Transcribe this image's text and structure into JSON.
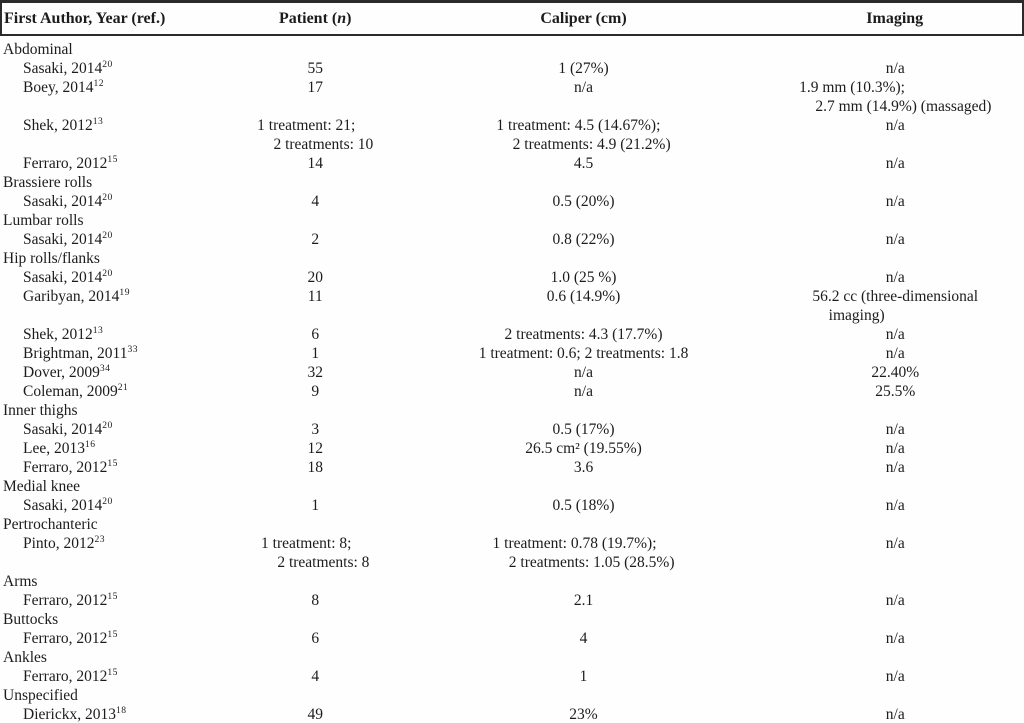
{
  "page": {
    "background_color": "#fefefe",
    "text_color": "#1c1c1c",
    "rule_color": "#2b2b2b"
  },
  "table": {
    "columns": [
      {
        "label": "First Author, Year (ref.)"
      },
      {
        "pre": "Patient (",
        "italic": "n",
        "post": ")"
      },
      {
        "label": "Caliper (cm)"
      },
      {
        "label": "Imaging"
      }
    ],
    "sections": [
      {
        "title": "Abdominal",
        "rows": [
          {
            "author": "Sasaki, 2014",
            "ref": "20",
            "patient": [
              "55"
            ],
            "caliper": [
              "1 (27%)"
            ],
            "imaging": [
              "n/a"
            ]
          },
          {
            "author": "Boey, 2014",
            "ref": "12",
            "patient": [
              "17"
            ],
            "caliper": [
              "n/a"
            ],
            "imaging": [
              "1.9 mm (10.3%);",
              "2.7 mm (14.9%) (massaged)"
            ]
          },
          {
            "author": "Shek, 2012",
            "ref": "13",
            "patient": [
              "1 treatment: 21;",
              "2 treatments: 10"
            ],
            "caliper": [
              "1 treatment: 4.5 (14.67%);",
              "2 treatments: 4.9 (21.2%)"
            ],
            "imaging": [
              "n/a"
            ]
          },
          {
            "author": "Ferraro, 2012",
            "ref": "15",
            "patient": [
              "14"
            ],
            "caliper": [
              "4.5"
            ],
            "imaging": [
              "n/a"
            ]
          }
        ]
      },
      {
        "title": "Brassiere rolls",
        "rows": [
          {
            "author": "Sasaki, 2014",
            "ref": "20",
            "patient": [
              "4"
            ],
            "caliper": [
              "0.5 (20%)"
            ],
            "imaging": [
              "n/a"
            ]
          }
        ]
      },
      {
        "title": "Lumbar rolls",
        "rows": [
          {
            "author": "Sasaki, 2014",
            "ref": "20",
            "patient": [
              "2"
            ],
            "caliper": [
              "0.8 (22%)"
            ],
            "imaging": [
              "n/a"
            ]
          }
        ]
      },
      {
        "title": "Hip rolls/flanks",
        "rows": [
          {
            "author": "Sasaki, 2014",
            "ref": "20",
            "patient": [
              "20"
            ],
            "caliper": [
              "1.0 (25 %)"
            ],
            "imaging": [
              "n/a"
            ]
          },
          {
            "author": "Garibyan, 2014",
            "ref": "19",
            "patient": [
              "11"
            ],
            "caliper": [
              "0.6 (14.9%)"
            ],
            "imaging": [
              "56.2 cc (three-dimensional",
              "imaging)"
            ]
          },
          {
            "author": "Shek, 2012",
            "ref": "13",
            "patient": [
              "6"
            ],
            "caliper": [
              "2 treatments: 4.3 (17.7%)"
            ],
            "imaging": [
              "n/a"
            ]
          },
          {
            "author": "Brightman, 2011",
            "ref": "33",
            "patient": [
              "1"
            ],
            "caliper": [
              "1 treatment: 0.6; 2 treatments: 1.8"
            ],
            "imaging": [
              "n/a"
            ]
          },
          {
            "author": "Dover, 2009",
            "ref": "34",
            "patient": [
              "32"
            ],
            "caliper": [
              "n/a"
            ],
            "imaging": [
              "22.40%"
            ]
          },
          {
            "author": "Coleman, 2009",
            "ref": "21",
            "patient": [
              "9"
            ],
            "caliper": [
              "n/a"
            ],
            "imaging": [
              "25.5%"
            ]
          }
        ]
      },
      {
        "title": "Inner thighs",
        "rows": [
          {
            "author": "Sasaki, 2014",
            "ref": "20",
            "patient": [
              "3"
            ],
            "caliper": [
              "0.5 (17%)"
            ],
            "imaging": [
              "n/a"
            ]
          },
          {
            "author": "Lee, 2013",
            "ref": "16",
            "patient": [
              "12"
            ],
            "caliper": [
              "26.5 cm² (19.55%)"
            ],
            "imaging": [
              "n/a"
            ]
          },
          {
            "author": "Ferraro, 2012",
            "ref": "15",
            "patient": [
              "18"
            ],
            "caliper": [
              "3.6"
            ],
            "imaging": [
              "n/a"
            ]
          }
        ]
      },
      {
        "title": "Medial knee",
        "rows": [
          {
            "author": "Sasaki, 2014",
            "ref": "20",
            "patient": [
              "1"
            ],
            "caliper": [
              "0.5 (18%)"
            ],
            "imaging": [
              "n/a"
            ]
          }
        ]
      },
      {
        "title": "Pertrochanteric",
        "rows": [
          {
            "author": "Pinto, 2012",
            "ref": "23",
            "patient": [
              "1 treatment: 8;",
              "2 treatments: 8"
            ],
            "caliper": [
              "1 treatment: 0.78 (19.7%);",
              "2 treatments: 1.05 (28.5%)"
            ],
            "imaging": [
              "n/a"
            ]
          }
        ]
      },
      {
        "title": "Arms",
        "rows": [
          {
            "author": "Ferraro, 2012",
            "ref": "15",
            "patient": [
              "8"
            ],
            "caliper": [
              "2.1"
            ],
            "imaging": [
              "n/a"
            ]
          }
        ]
      },
      {
        "title": "Buttocks",
        "rows": [
          {
            "author": "Ferraro, 2012",
            "ref": "15",
            "patient": [
              "6"
            ],
            "caliper": [
              "4"
            ],
            "imaging": [
              "n/a"
            ]
          }
        ]
      },
      {
        "title": "Ankles",
        "rows": [
          {
            "author": "Ferraro, 2012",
            "ref": "15",
            "patient": [
              "4"
            ],
            "caliper": [
              "1"
            ],
            "imaging": [
              "n/a"
            ]
          }
        ]
      },
      {
        "title": "Unspecified",
        "rows": [
          {
            "author": "Dierickx, 2013",
            "ref": "18",
            "patient": [
              "49"
            ],
            "caliper": [
              "23%"
            ],
            "imaging": [
              "n/a"
            ]
          }
        ]
      }
    ]
  }
}
